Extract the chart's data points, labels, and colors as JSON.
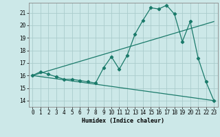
{
  "xlabel": "Humidex (Indice chaleur)",
  "ylabel": "",
  "background_color": "#cce8e8",
  "grid_color": "#aacccc",
  "line_color": "#1a7a6a",
  "xlim": [
    -0.5,
    23.5
  ],
  "ylim": [
    13.5,
    21.8
  ],
  "yticks": [
    14,
    15,
    16,
    17,
    18,
    19,
    20,
    21
  ],
  "xticks": [
    0,
    1,
    2,
    3,
    4,
    5,
    6,
    7,
    8,
    9,
    10,
    11,
    12,
    13,
    14,
    15,
    16,
    17,
    18,
    19,
    20,
    21,
    22,
    23
  ],
  "line1_x": [
    0,
    1,
    2,
    3,
    4,
    5,
    6,
    7,
    8,
    9,
    10,
    11,
    12,
    13,
    14,
    15,
    16,
    17,
    18,
    19,
    20,
    21,
    22,
    23
  ],
  "line1_y": [
    16.0,
    16.3,
    16.1,
    15.9,
    15.7,
    15.7,
    15.6,
    15.5,
    15.4,
    16.6,
    17.5,
    16.5,
    17.6,
    19.3,
    20.4,
    21.4,
    21.3,
    21.6,
    20.9,
    18.7,
    20.3,
    17.4,
    15.5,
    14.0
  ],
  "line2_x": [
    0,
    23
  ],
  "line2_y": [
    16.0,
    20.3
  ],
  "line3_x": [
    0,
    23
  ],
  "line3_y": [
    16.0,
    14.0
  ]
}
